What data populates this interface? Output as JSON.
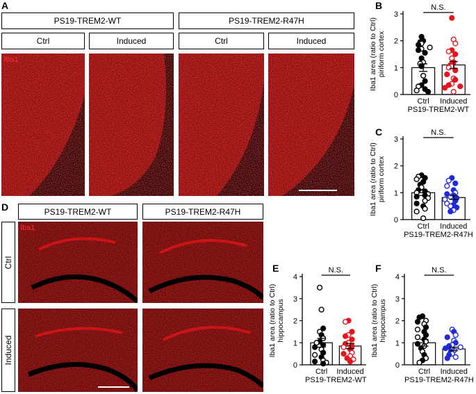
{
  "panels": {
    "A": "A",
    "B": "B",
    "C": "C",
    "D": "D",
    "E": "E",
    "F": "F"
  },
  "panel_a": {
    "group_wt": "PS19-TREM2-WT",
    "group_r47h": "PS19-TREM2-R47H",
    "ctrl": "Ctrl",
    "induced": "Induced",
    "stain": "Iba1"
  },
  "panel_d": {
    "group_wt": "PS19-TREM2-WT",
    "group_r47h": "PS19-TREM2-R47H",
    "row_ctrl": "Ctrl",
    "row_induced": "Induced",
    "stain": "Iba1"
  },
  "colors": {
    "black": "#000000",
    "red": "#e8141c",
    "blue": "#1f2bd8",
    "tissue": "#c81010"
  },
  "chart_data": [
    {
      "id": "B",
      "type": "bar",
      "categories": [
        "Ctrl",
        "Induced"
      ],
      "group_label": "PS19-TREM2-WT",
      "ylabel": "Iba1 area (ratio to Ctrl)",
      "ylabel2": "piriform cortex",
      "ylim": [
        0,
        3
      ],
      "yticks": [
        0,
        1,
        2,
        3
      ],
      "significance": "N.S.",
      "color2": "#e8141c",
      "means": [
        1.0,
        1.1
      ],
      "sem": [
        0.14,
        0.13
      ],
      "points": [
        [
          [
            2.15,
            1
          ],
          [
            2.0,
            1
          ],
          [
            1.95,
            1
          ],
          [
            1.9,
            0
          ],
          [
            1.85,
            1
          ],
          [
            1.75,
            0
          ],
          [
            1.7,
            0
          ],
          [
            1.65,
            1
          ],
          [
            1.55,
            1
          ],
          [
            1.35,
            1
          ],
          [
            1.2,
            0
          ],
          [
            1.15,
            0
          ],
          [
            1.05,
            1
          ],
          [
            0.7,
            0
          ],
          [
            0.5,
            1
          ],
          [
            0.35,
            1
          ],
          [
            0.3,
            0
          ],
          [
            0.2,
            1
          ],
          [
            0.15,
            0
          ],
          [
            0.1,
            1
          ]
        ],
        [
          [
            2.85,
            1
          ],
          [
            2.05,
            0
          ],
          [
            1.9,
            0
          ],
          [
            1.65,
            1
          ],
          [
            1.6,
            0
          ],
          [
            1.5,
            1
          ],
          [
            1.35,
            0
          ],
          [
            1.2,
            1
          ],
          [
            1.1,
            1
          ],
          [
            1.05,
            0
          ],
          [
            1.0,
            0
          ],
          [
            0.9,
            1
          ],
          [
            0.75,
            1
          ],
          [
            0.6,
            0
          ],
          [
            0.55,
            1
          ],
          [
            0.4,
            0
          ],
          [
            0.35,
            1
          ],
          [
            0.3,
            1
          ],
          [
            0.25,
            1
          ],
          [
            0.1,
            0
          ]
        ]
      ]
    },
    {
      "id": "C",
      "type": "bar",
      "categories": [
        "Ctrl",
        "Induced"
      ],
      "group_label": "PS19-TREM2-R47H",
      "ylabel": "Iba1 area (ratio to Ctrl)",
      "ylabel2": "piriform cortex",
      "ylim": [
        0,
        3
      ],
      "yticks": [
        0,
        1,
        2,
        3
      ],
      "significance": "N.S.",
      "color2": "#1f2bd8",
      "means": [
        1.0,
        0.82
      ],
      "sem": [
        0.1,
        0.07
      ],
      "points": [
        [
          [
            1.65,
            1
          ],
          [
            1.6,
            0
          ],
          [
            1.55,
            1
          ],
          [
            1.5,
            0
          ],
          [
            1.4,
            1
          ],
          [
            1.3,
            1
          ],
          [
            1.2,
            0
          ],
          [
            1.1,
            1
          ],
          [
            1.05,
            1
          ],
          [
            1.0,
            0
          ],
          [
            0.95,
            0
          ],
          [
            0.9,
            1
          ],
          [
            0.85,
            1
          ],
          [
            0.8,
            0
          ],
          [
            0.7,
            0
          ],
          [
            0.6,
            1
          ],
          [
            0.5,
            1
          ],
          [
            0.4,
            0
          ],
          [
            0.3,
            0
          ],
          [
            0.05,
            0
          ]
        ],
        [
          [
            1.55,
            1
          ],
          [
            1.45,
            0
          ],
          [
            1.35,
            1
          ],
          [
            1.25,
            0
          ],
          [
            1.1,
            1
          ],
          [
            1.0,
            0
          ],
          [
            0.95,
            1
          ],
          [
            0.9,
            1
          ],
          [
            0.85,
            0
          ],
          [
            0.8,
            1
          ],
          [
            0.75,
            0
          ],
          [
            0.7,
            1
          ],
          [
            0.6,
            0
          ],
          [
            0.55,
            1
          ],
          [
            0.5,
            0
          ],
          [
            0.45,
            1
          ],
          [
            0.35,
            0
          ],
          [
            0.3,
            1
          ]
        ]
      ]
    },
    {
      "id": "E",
      "type": "bar",
      "categories": [
        "Ctrl",
        "Induced"
      ],
      "group_label": "PS19-TREM2-WT",
      "ylabel": "Iba1 area (ratio to Ctrl)",
      "ylabel2": "hippocampus",
      "ylim": [
        0,
        4
      ],
      "yticks": [
        0,
        1,
        2,
        3,
        4
      ],
      "significance": "N.S.",
      "color2": "#e8141c",
      "means": [
        1.0,
        0.85
      ],
      "sem": [
        0.2,
        0.12
      ],
      "points": [
        [
          [
            3.5,
            0
          ],
          [
            2.5,
            0
          ],
          [
            1.65,
            1
          ],
          [
            1.5,
            0
          ],
          [
            1.35,
            1
          ],
          [
            1.2,
            0
          ],
          [
            1.05,
            1
          ],
          [
            1.0,
            0
          ],
          [
            0.9,
            1
          ],
          [
            0.8,
            1
          ],
          [
            0.7,
            0
          ],
          [
            0.55,
            1
          ],
          [
            0.45,
            0
          ],
          [
            0.35,
            1
          ],
          [
            0.2,
            0
          ],
          [
            0.15,
            1
          ],
          [
            0.1,
            0
          ],
          [
            0.05,
            1
          ]
        ],
        [
          [
            2.0,
            1
          ],
          [
            1.95,
            0
          ],
          [
            1.5,
            1
          ],
          [
            1.35,
            0
          ],
          [
            1.3,
            1
          ],
          [
            1.15,
            1
          ],
          [
            1.0,
            0
          ],
          [
            0.95,
            1
          ],
          [
            0.85,
            1
          ],
          [
            0.8,
            0
          ],
          [
            0.7,
            1
          ],
          [
            0.55,
            0
          ],
          [
            0.5,
            1
          ],
          [
            0.4,
            0
          ],
          [
            0.3,
            1
          ],
          [
            0.25,
            0
          ],
          [
            0.15,
            1
          ]
        ]
      ]
    },
    {
      "id": "F",
      "type": "bar",
      "categories": [
        "Ctrl",
        "Induced"
      ],
      "group_label": "PS19-TREM2-R47H",
      "ylabel": "Iba1 area (ratio to Ctrl)",
      "ylabel2": "hippocampus",
      "ylim": [
        0,
        4
      ],
      "yticks": [
        0,
        1,
        2,
        3,
        4
      ],
      "significance": "N.S.",
      "color2": "#1f2bd8",
      "means": [
        1.0,
        0.72
      ],
      "sem": [
        0.15,
        0.08
      ],
      "points": [
        [
          [
            2.2,
            1
          ],
          [
            2.15,
            1
          ],
          [
            2.0,
            0
          ],
          [
            1.95,
            1
          ],
          [
            1.85,
            0
          ],
          [
            1.7,
            1
          ],
          [
            1.6,
            0
          ],
          [
            1.5,
            1
          ],
          [
            1.35,
            1
          ],
          [
            1.25,
            0
          ],
          [
            1.15,
            1
          ],
          [
            1.05,
            0
          ],
          [
            0.95,
            1
          ],
          [
            0.85,
            0
          ],
          [
            0.75,
            1
          ],
          [
            0.6,
            0
          ],
          [
            0.45,
            1
          ],
          [
            0.3,
            0
          ],
          [
            0.2,
            1
          ],
          [
            0.1,
            0
          ]
        ],
        [
          [
            1.6,
            0
          ],
          [
            1.5,
            1
          ],
          [
            1.35,
            0
          ],
          [
            1.25,
            1
          ],
          [
            1.1,
            0
          ],
          [
            1.0,
            1
          ],
          [
            0.9,
            0
          ],
          [
            0.85,
            1
          ],
          [
            0.8,
            0
          ],
          [
            0.75,
            1
          ],
          [
            0.65,
            0
          ],
          [
            0.6,
            1
          ],
          [
            0.5,
            0
          ],
          [
            0.45,
            1
          ],
          [
            0.35,
            0
          ],
          [
            0.3,
            1
          ]
        ]
      ]
    }
  ]
}
